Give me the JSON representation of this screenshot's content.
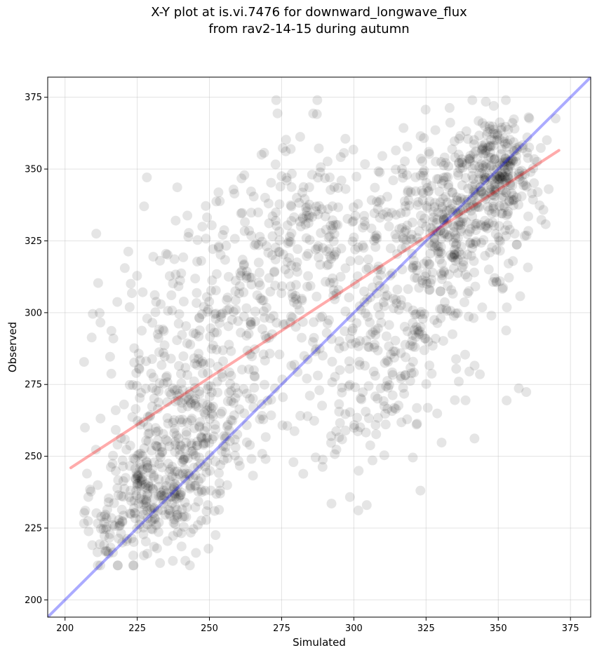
{
  "chart_data": {
    "type": "scatter",
    "title_line1": "X-Y plot at is.vi.7476 for downward_longwave_flux",
    "title_line2": "from rav2-14-15 during autumn",
    "xlabel": "Simulated",
    "ylabel": "Observed",
    "xlim": [
      194,
      382
    ],
    "ylim": [
      194,
      382
    ],
    "xticks": [
      "200",
      "225",
      "250",
      "275",
      "300",
      "325",
      "350",
      "375"
    ],
    "yticks": [
      "200",
      "225",
      "250",
      "275",
      "300",
      "325",
      "350",
      "375"
    ],
    "grid": true,
    "point_color": "#000000",
    "point_opacity": 0.1,
    "identity_line": {
      "x": [
        194,
        382
      ],
      "y": [
        194,
        382
      ],
      "color": "#0000ff",
      "opacity": 0.33
    },
    "fit_line": {
      "x": [
        202,
        371
      ],
      "y": [
        246,
        356.5
      ],
      "color": "#ff0000",
      "opacity": 0.33
    },
    "clusters": [
      {
        "cx": 232,
        "cy": 238,
        "sx": 9,
        "sy": 10,
        "n": 260
      },
      {
        "cx": 250,
        "cy": 262,
        "sx": 12,
        "sy": 14,
        "n": 160
      },
      {
        "cx": 235,
        "cy": 285,
        "sx": 12,
        "sy": 20,
        "n": 150
      },
      {
        "cx": 265,
        "cy": 310,
        "sx": 14,
        "sy": 22,
        "n": 170
      },
      {
        "cx": 285,
        "cy": 330,
        "sx": 15,
        "sy": 15,
        "n": 140
      },
      {
        "cx": 300,
        "cy": 305,
        "sx": 22,
        "sy": 28,
        "n": 180
      },
      {
        "cx": 300,
        "cy": 265,
        "sx": 15,
        "sy": 14,
        "n": 70
      },
      {
        "cx": 335,
        "cy": 330,
        "sx": 12,
        "sy": 12,
        "n": 330
      },
      {
        "cx": 350,
        "cy": 352,
        "sx": 8,
        "sy": 9,
        "n": 230
      },
      {
        "cx": 320,
        "cy": 295,
        "sx": 12,
        "sy": 16,
        "n": 110
      },
      {
        "cx": 218,
        "cy": 225,
        "sx": 6,
        "sy": 8,
        "n": 60
      }
    ]
  }
}
